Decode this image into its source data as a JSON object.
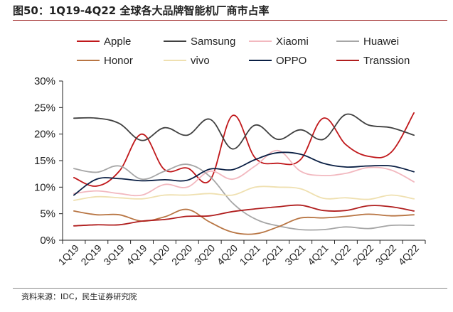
{
  "header": {
    "title": "图50：1Q19-4Q22 全球各大品牌智能机厂商市占率"
  },
  "footer": {
    "source": "资料来源：IDC，民生证券研究院"
  },
  "chart_data": {
    "type": "line",
    "title": "图50：1Q19-4Q22 全球各大品牌智能机厂商市占率",
    "xlabel": "",
    "ylabel": "",
    "ylim": [
      0,
      30
    ],
    "yticks": [
      "0%",
      "5%",
      "10%",
      "15%",
      "20%",
      "25%",
      "30%"
    ],
    "x": [
      "1Q19",
      "2Q19",
      "3Q19",
      "4Q19",
      "1Q20",
      "2Q20",
      "3Q20",
      "4Q20",
      "1Q21",
      "2Q21",
      "3Q21",
      "4Q21",
      "1Q22",
      "2Q22",
      "3Q22",
      "4Q22"
    ],
    "grid": false,
    "legend_position": "top",
    "series": [
      {
        "name": "Apple",
        "color": "#c0181b",
        "values": [
          11.8,
          10.2,
          13.0,
          20.0,
          13.3,
          13.6,
          11.3,
          23.5,
          15.5,
          14.5,
          15.2,
          23.0,
          18.0,
          15.8,
          16.6,
          24.0
        ]
      },
      {
        "name": "Samsung",
        "color": "#404040",
        "values": [
          23.0,
          23.0,
          22.0,
          18.8,
          21.2,
          19.8,
          22.8,
          17.2,
          21.7,
          19.0,
          20.8,
          19.0,
          23.7,
          21.7,
          21.2,
          19.8
        ]
      },
      {
        "name": "Xiaomi",
        "color": "#f2b8bf",
        "values": [
          8.8,
          9.3,
          8.8,
          8.5,
          10.5,
          10.0,
          13.0,
          11.5,
          14.0,
          16.9,
          13.0,
          12.2,
          12.6,
          13.7,
          13.2,
          11.0
        ]
      },
      {
        "name": "Huawei",
        "color": "#a6a6a6",
        "values": [
          13.5,
          12.8,
          14.0,
          11.5,
          13.0,
          14.3,
          12.0,
          7.0,
          4.0,
          2.7,
          2.0,
          2.0,
          2.5,
          2.2,
          2.8,
          2.8
        ]
      },
      {
        "name": "Honor",
        "color": "#b87543",
        "values": [
          5.5,
          4.8,
          4.8,
          3.6,
          4.4,
          5.8,
          3.4,
          1.5,
          1.2,
          2.5,
          4.2,
          4.2,
          4.5,
          4.9,
          4.6,
          4.8
        ]
      },
      {
        "name": "vivo",
        "color": "#efe0b0",
        "values": [
          7.5,
          8.2,
          8.0,
          7.8,
          8.5,
          8.5,
          8.8,
          8.5,
          10.0,
          10.0,
          9.7,
          7.9,
          8.0,
          7.7,
          8.5,
          7.8
        ]
      },
      {
        "name": "OPPO",
        "color": "#0a1f44",
        "values": [
          8.5,
          11.5,
          11.6,
          11.2,
          11.4,
          11.3,
          13.4,
          13.3,
          15.2,
          16.5,
          16.2,
          14.5,
          13.8,
          14.0,
          14.0,
          12.9
        ]
      },
      {
        "name": "Transsion",
        "color": "#b01e1e",
        "values": [
          2.7,
          2.9,
          2.9,
          3.6,
          3.9,
          4.5,
          4.6,
          5.4,
          5.9,
          6.3,
          6.6,
          5.6,
          5.6,
          6.5,
          6.3,
          5.5
        ]
      }
    ]
  }
}
